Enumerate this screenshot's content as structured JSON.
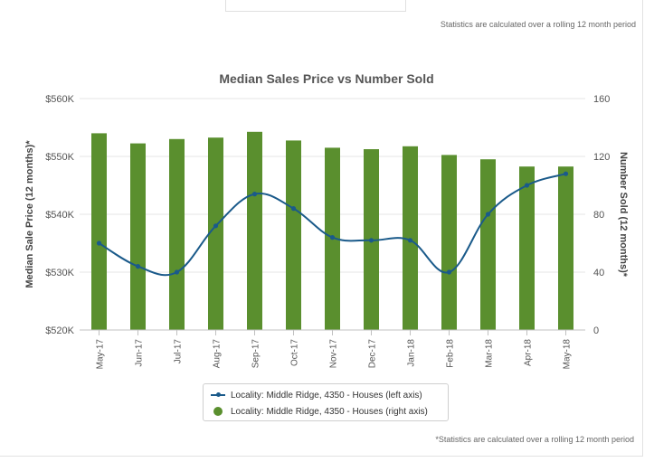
{
  "notes": {
    "top": "Statistics are calculated over a rolling 12 month period",
    "bottom": "*Statistics are calculated over a rolling 12 month period"
  },
  "colors": {
    "bar": "#5a8f2e",
    "line": "#1a5a8a",
    "grid": "#e6e6e6"
  },
  "chart_data": {
    "type": "bar",
    "title": "Median Sales Price vs Number Sold",
    "ylabel_left": "Median Sale Price (12 months)*",
    "ylabel_right": "Number Sold (12 months)*",
    "categories": [
      "May-17",
      "Jun-17",
      "Jul-17",
      "Aug-17",
      "Sep-17",
      "Oct-17",
      "Nov-17",
      "Dec-17",
      "Jan-18",
      "Feb-18",
      "Mar-18",
      "Apr-18",
      "May-18"
    ],
    "left_axis": {
      "ylim": [
        520000,
        560000
      ],
      "ticks": [
        "$520K",
        "$530K",
        "$540K",
        "$550K",
        "$560K"
      ]
    },
    "right_axis": {
      "ylim": [
        0,
        160
      ],
      "ticks": [
        "0",
        "40",
        "80",
        "120",
        "160"
      ]
    },
    "grid": true,
    "legend_position": "bottom-center",
    "series": [
      {
        "name": "Locality: Middle Ridge, 4350 - Houses (left axis)",
        "type": "line",
        "axis": "left",
        "values": [
          535000,
          531000,
          530000,
          538000,
          543500,
          541000,
          536000,
          535500,
          535500,
          530000,
          540000,
          545000,
          547000
        ]
      },
      {
        "name": "Locality: Middle Ridge, 4350 - Houses (right axis)",
        "type": "bar",
        "axis": "right",
        "values": [
          136,
          129,
          132,
          133,
          137,
          131,
          126,
          125,
          127,
          121,
          118,
          113,
          113
        ]
      }
    ]
  }
}
